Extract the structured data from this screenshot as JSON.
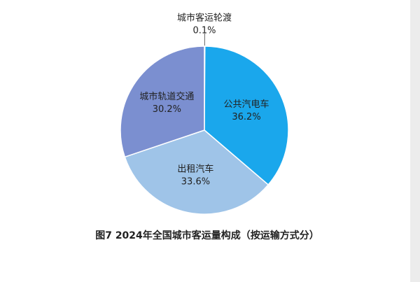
{
  "chart_data": {
    "type": "pie",
    "title": "图7  2024年全国城市客运量构成（按运输方式分）",
    "categories": [
      "城市客运轮渡",
      "公共汽电车",
      "出租汽车",
      "城市轨道交通"
    ],
    "values": [
      0.1,
      36.2,
      33.6,
      30.2
    ],
    "value_labels": [
      "0.1%",
      "36.2%",
      "33.6%",
      "30.2%"
    ],
    "colors": [
      "#4a6fb5",
      "#1aa7ec",
      "#9fc4e8",
      "#7b8fd0"
    ]
  }
}
